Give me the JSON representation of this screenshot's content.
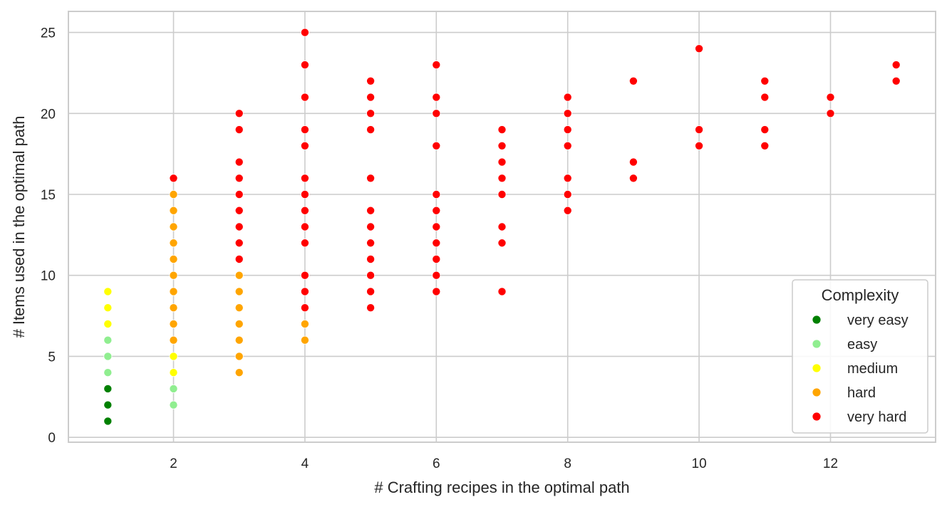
{
  "chart_data": {
    "type": "scatter",
    "xlabel": "# Crafting recipes in the optimal path",
    "ylabel": "# Items used in the optimal path",
    "xlim": [
      0.4,
      13.6
    ],
    "ylim": [
      -0.3,
      26.3
    ],
    "xticks": [
      2,
      4,
      6,
      8,
      10,
      12
    ],
    "yticks": [
      0,
      5,
      10,
      15,
      20,
      25
    ],
    "grid": true,
    "legend": {
      "title": "Complexity",
      "position": "lower-right"
    },
    "series": [
      {
        "name": "very easy",
        "color": "#008000",
        "points": [
          [
            1,
            1
          ],
          [
            1,
            2
          ],
          [
            1,
            3
          ]
        ]
      },
      {
        "name": "easy",
        "color": "#90ee90",
        "points": [
          [
            1,
            4
          ],
          [
            1,
            5
          ],
          [
            1,
            6
          ],
          [
            2,
            2
          ],
          [
            2,
            3
          ]
        ]
      },
      {
        "name": "medium",
        "color": "#ffff00",
        "points": [
          [
            1,
            7
          ],
          [
            1,
            8
          ],
          [
            1,
            9
          ],
          [
            2,
            4
          ],
          [
            2,
            5
          ]
        ]
      },
      {
        "name": "hard",
        "color": "#ffa500",
        "points": [
          [
            2,
            6
          ],
          [
            2,
            7
          ],
          [
            2,
            8
          ],
          [
            2,
            9
          ],
          [
            2,
            10
          ],
          [
            2,
            11
          ],
          [
            2,
            12
          ],
          [
            2,
            13
          ],
          [
            2,
            14
          ],
          [
            2,
            15
          ],
          [
            3,
            4
          ],
          [
            3,
            5
          ],
          [
            3,
            6
          ],
          [
            3,
            7
          ],
          [
            3,
            8
          ],
          [
            3,
            9
          ],
          [
            3,
            10
          ],
          [
            4,
            6
          ],
          [
            4,
            7
          ]
        ]
      },
      {
        "name": "very hard",
        "color": "#ff0000",
        "points": [
          [
            2,
            16
          ],
          [
            3,
            11
          ],
          [
            3,
            12
          ],
          [
            3,
            13
          ],
          [
            3,
            14
          ],
          [
            3,
            15
          ],
          [
            3,
            16
          ],
          [
            3,
            17
          ],
          [
            3,
            19
          ],
          [
            3,
            20
          ],
          [
            4,
            8
          ],
          [
            4,
            9
          ],
          [
            4,
            10
          ],
          [
            4,
            12
          ],
          [
            4,
            13
          ],
          [
            4,
            14
          ],
          [
            4,
            15
          ],
          [
            4,
            16
          ],
          [
            4,
            18
          ],
          [
            4,
            19
          ],
          [
            4,
            21
          ],
          [
            4,
            23
          ],
          [
            4,
            25
          ],
          [
            5,
            8
          ],
          [
            5,
            9
          ],
          [
            5,
            10
          ],
          [
            5,
            11
          ],
          [
            5,
            12
          ],
          [
            5,
            13
          ],
          [
            5,
            14
          ],
          [
            5,
            16
          ],
          [
            5,
            19
          ],
          [
            5,
            20
          ],
          [
            5,
            21
          ],
          [
            5,
            22
          ],
          [
            6,
            9
          ],
          [
            6,
            10
          ],
          [
            6,
            11
          ],
          [
            6,
            12
          ],
          [
            6,
            13
          ],
          [
            6,
            14
          ],
          [
            6,
            15
          ],
          [
            6,
            18
          ],
          [
            6,
            20
          ],
          [
            6,
            21
          ],
          [
            6,
            23
          ],
          [
            7,
            9
          ],
          [
            7,
            12
          ],
          [
            7,
            13
          ],
          [
            7,
            15
          ],
          [
            7,
            16
          ],
          [
            7,
            17
          ],
          [
            7,
            18
          ],
          [
            7,
            19
          ],
          [
            8,
            14
          ],
          [
            8,
            15
          ],
          [
            8,
            16
          ],
          [
            8,
            18
          ],
          [
            8,
            19
          ],
          [
            8,
            20
          ],
          [
            8,
            21
          ],
          [
            9,
            16
          ],
          [
            9,
            17
          ],
          [
            9,
            22
          ],
          [
            10,
            18
          ],
          [
            10,
            19
          ],
          [
            10,
            24
          ],
          [
            11,
            18
          ],
          [
            11,
            19
          ],
          [
            11,
            21
          ],
          [
            11,
            22
          ],
          [
            12,
            20
          ],
          [
            12,
            21
          ],
          [
            13,
            22
          ],
          [
            13,
            23
          ]
        ]
      }
    ]
  }
}
